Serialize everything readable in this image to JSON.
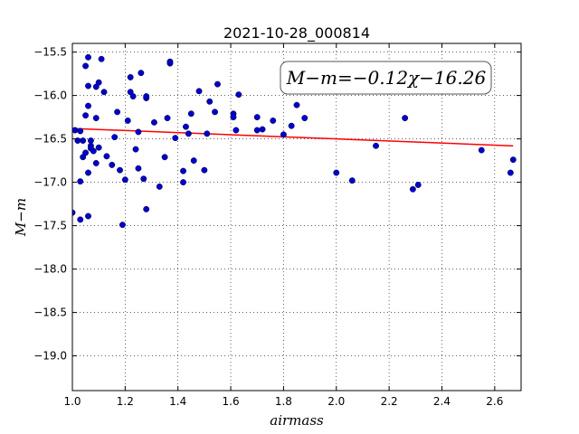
{
  "chart_data": {
    "type": "scatter",
    "title": "2021-10-28_000814",
    "xlabel": "airmass",
    "ylabel": "M−m",
    "annotation": "M−m=−0.12χ−16.26",
    "xlim": [
      1.0,
      2.7
    ],
    "ylim": [
      -19.4,
      -15.4
    ],
    "y_inverted": true,
    "grid": true,
    "x_ticks": [
      1.0,
      1.2,
      1.4,
      1.6,
      1.8,
      2.0,
      2.2,
      2.4,
      2.6
    ],
    "x_tick_labels": [
      "1.0",
      "1.2",
      "1.4",
      "1.6",
      "1.8",
      "2.0",
      "2.2",
      "2.4",
      "2.6"
    ],
    "y_ticks": [
      -15.5,
      -16.0,
      -16.5,
      -17.0,
      -17.5,
      -18.0,
      -18.5,
      -19.0
    ],
    "y_tick_labels": [
      "−15.5",
      "−16.0",
      "−16.5",
      "−17.0",
      "−17.5",
      "−18.0",
      "−18.5",
      "−19.0"
    ],
    "fit": {
      "slope": -0.12,
      "intercept": -16.26,
      "x_range": [
        1.0,
        2.67
      ],
      "color": "#ff0000"
    },
    "point_color": "#0000cc",
    "points": [
      [
        1.0,
        -17.35
      ],
      [
        1.01,
        -16.4
      ],
      [
        1.02,
        -16.52
      ],
      [
        1.03,
        -17.43
      ],
      [
        1.03,
        -16.99
      ],
      [
        1.03,
        -16.41
      ],
      [
        1.04,
        -16.52
      ],
      [
        1.04,
        -16.71
      ],
      [
        1.05,
        -15.66
      ],
      [
        1.05,
        -16.23
      ],
      [
        1.05,
        -16.66
      ],
      [
        1.06,
        -15.56
      ],
      [
        1.06,
        -16.12
      ],
      [
        1.06,
        -15.89
      ],
      [
        1.06,
        -17.39
      ],
      [
        1.06,
        -16.89
      ],
      [
        1.07,
        -16.58
      ],
      [
        1.07,
        -16.52
      ],
      [
        1.07,
        -16.61
      ],
      [
        1.08,
        -16.64
      ],
      [
        1.09,
        -16.26
      ],
      [
        1.09,
        -16.78
      ],
      [
        1.09,
        -15.9
      ],
      [
        1.1,
        -15.85
      ],
      [
        1.1,
        -16.6
      ],
      [
        1.11,
        -15.58
      ],
      [
        1.12,
        -15.96
      ],
      [
        1.13,
        -16.7
      ],
      [
        1.15,
        -16.8
      ],
      [
        1.16,
        -16.48
      ],
      [
        1.17,
        -16.19
      ],
      [
        1.18,
        -16.86
      ],
      [
        1.19,
        -17.49
      ],
      [
        1.2,
        -16.97
      ],
      [
        1.21,
        -16.29
      ],
      [
        1.22,
        -15.79
      ],
      [
        1.22,
        -15.96
      ],
      [
        1.23,
        -16.01
      ],
      [
        1.24,
        -16.62
      ],
      [
        1.25,
        -16.84
      ],
      [
        1.25,
        -16.42
      ],
      [
        1.26,
        -15.74
      ],
      [
        1.27,
        -16.96
      ],
      [
        1.28,
        -17.31
      ],
      [
        1.28,
        -16.03
      ],
      [
        1.28,
        -16.01
      ],
      [
        1.31,
        -16.31
      ],
      [
        1.33,
        -17.05
      ],
      [
        1.35,
        -16.71
      ],
      [
        1.36,
        -16.26
      ],
      [
        1.37,
        -15.63
      ],
      [
        1.37,
        -15.61
      ],
      [
        1.39,
        -16.49
      ],
      [
        1.42,
        -16.87
      ],
      [
        1.42,
        -17.0
      ],
      [
        1.43,
        -16.36
      ],
      [
        1.44,
        -16.44
      ],
      [
        1.45,
        -16.21
      ],
      [
        1.46,
        -16.75
      ],
      [
        1.48,
        -15.95
      ],
      [
        1.5,
        -16.86
      ],
      [
        1.51,
        -16.44
      ],
      [
        1.52,
        -16.07
      ],
      [
        1.54,
        -16.19
      ],
      [
        1.55,
        -15.87
      ],
      [
        1.61,
        -16.21
      ],
      [
        1.61,
        -16.25
      ],
      [
        1.62,
        -16.4
      ],
      [
        1.63,
        -15.99
      ],
      [
        1.7,
        -16.25
      ],
      [
        1.7,
        -16.4
      ],
      [
        1.72,
        -16.39
      ],
      [
        1.76,
        -16.29
      ],
      [
        1.8,
        -16.45
      ],
      [
        1.83,
        -16.35
      ],
      [
        1.85,
        -16.11
      ],
      [
        1.88,
        -16.26
      ],
      [
        2.0,
        -16.89
      ],
      [
        2.06,
        -16.98
      ],
      [
        2.15,
        -16.58
      ],
      [
        2.26,
        -16.26
      ],
      [
        2.29,
        -17.08
      ],
      [
        2.31,
        -17.03
      ],
      [
        2.55,
        -16.63
      ],
      [
        2.66,
        -16.89
      ],
      [
        2.67,
        -16.74
      ]
    ]
  }
}
